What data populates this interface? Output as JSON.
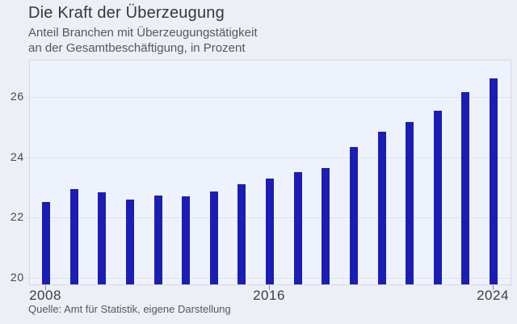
{
  "header": {
    "title": "Die Kraft der Überzeugung",
    "subtitle_line1": "Anteil Branchen mit Überzeugungstätigkeit",
    "subtitle_line2": "an der Gesamtbeschäftigung, in Prozent"
  },
  "footer": {
    "source": "Quelle: Amt für Statistik, eigene Darstellung"
  },
  "colors": {
    "bar": "#1b1eb2",
    "page_bg": "#edeff7",
    "plot_bg": "#eef2fc",
    "grid": "#dee1eb",
    "frame": "#d5d8e2"
  },
  "chart_data": {
    "type": "bar",
    "title": "Die Kraft der Überzeugung",
    "subtitle": "Anteil Branchen mit Überzeugungstätigkeit an der Gesamtbeschäftigung, in Prozent",
    "categories": [
      "2008",
      "2009",
      "2010",
      "2011",
      "2012",
      "2013",
      "2014",
      "2015",
      "2016",
      "2017",
      "2018",
      "2019",
      "2020",
      "2021",
      "2022",
      "2023",
      "2024"
    ],
    "values": [
      22.45,
      22.9,
      22.78,
      22.55,
      22.68,
      22.65,
      22.82,
      23.05,
      23.23,
      23.45,
      23.6,
      24.27,
      24.78,
      25.12,
      25.5,
      26.1,
      26.55
    ],
    "xlabel": "",
    "ylabel": "",
    "ylim": [
      19.73,
      27.2
    ],
    "yticks": [
      20,
      22,
      24,
      26
    ],
    "xtick_labels": [
      {
        "label": "2008",
        "index": 0
      },
      {
        "label": "2016",
        "index": 8
      },
      {
        "label": "2024",
        "index": 16
      }
    ],
    "grid": "horizontal",
    "legend": "none",
    "source": "Quelle: Amt für Statistik, eigene Darstellung"
  }
}
